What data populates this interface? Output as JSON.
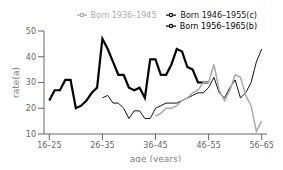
{
  "chart_data": {
    "type": "line",
    "title": "",
    "xlabel": "age (years)",
    "ylabel": "rate(a)",
    "xlim": [
      -1,
      41
    ],
    "xticks": [
      {
        "value": 0,
        "label": "16–25"
      },
      {
        "value": 10,
        "label": "26–35"
      },
      {
        "value": 20,
        "label": "36–45"
      },
      {
        "value": 30,
        "label": "46–55"
      },
      {
        "value": 40,
        "label": "56–65"
      }
    ],
    "ylim": [
      10,
      50
    ],
    "yticks": [
      10,
      20,
      30,
      40,
      50
    ],
    "grid": false,
    "legend": "upper right",
    "series": [
      {
        "name": "Born 1956–1965(b)",
        "color": "#000000",
        "x": [
          0,
          1,
          2,
          3,
          4,
          5,
          6,
          7,
          8,
          9,
          10,
          11,
          12,
          13,
          14,
          15,
          16,
          17,
          18,
          19,
          20,
          21,
          22,
          23,
          24,
          25,
          26,
          27,
          28,
          29,
          30
        ],
        "values": [
          23,
          27,
          27,
          31,
          31,
          20,
          21,
          23,
          26,
          28,
          47,
          43,
          38,
          33,
          33,
          28,
          27,
          28,
          24,
          39,
          39,
          33,
          33,
          37,
          43,
          42,
          36,
          35,
          30,
          30,
          30
        ]
      },
      {
        "name": "Born 1946–1955(c)",
        "color": "#111111",
        "x": [
          10,
          11,
          12,
          13,
          14,
          15,
          16,
          17,
          18,
          19,
          20,
          21,
          22,
          23,
          24,
          25,
          26,
          27,
          28,
          29,
          30,
          31,
          32,
          33,
          34,
          35,
          36,
          37,
          38,
          39,
          40
        ],
        "values": [
          24,
          25,
          22,
          22,
          20,
          16,
          19,
          19,
          16,
          16,
          20,
          21,
          22,
          22,
          22,
          23,
          24,
          25,
          26,
          26,
          28,
          32,
          26,
          24,
          28,
          31,
          24,
          26,
          30,
          38,
          43
        ]
      },
      {
        "name": "Born 1936–1945",
        "color": "#aaaaaa",
        "x": [
          20,
          21,
          22,
          23,
          24,
          25,
          26,
          27,
          28,
          29,
          30,
          31,
          32,
          33,
          34,
          35,
          36,
          37,
          38,
          39,
          40
        ],
        "values": [
          17,
          18,
          20,
          20,
          21,
          23,
          24,
          26,
          27,
          30,
          30,
          37,
          27,
          23,
          27,
          33,
          32,
          25,
          21,
          11,
          15
        ]
      }
    ]
  }
}
